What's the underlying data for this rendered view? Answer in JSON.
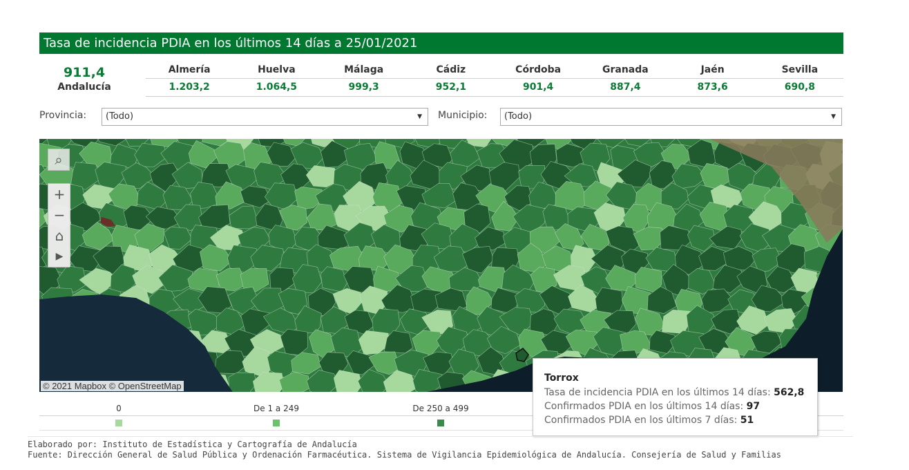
{
  "header": {
    "title": "Tasa de incidencia PDIA en los últimos 14 días a 25/01/2021"
  },
  "summary": {
    "total_value": "911,4",
    "total_label": "Andalucía",
    "provinces": [
      {
        "name": "Almería",
        "value": "1.203,2"
      },
      {
        "name": "Huelva",
        "value": "1.064,5"
      },
      {
        "name": "Málaga",
        "value": "999,3"
      },
      {
        "name": "Cádiz",
        "value": "952,1"
      },
      {
        "name": "Córdoba",
        "value": "901,4"
      },
      {
        "name": "Granada",
        "value": "887,4"
      },
      {
        "name": "Jaén",
        "value": "873,6"
      },
      {
        "name": "Sevilla",
        "value": "690,8"
      }
    ]
  },
  "filters": {
    "provincia_label": "Provincia:",
    "provincia_value": "(Todo)",
    "municipio_label": "Municipio:",
    "municipio_value": "(Todo)"
  },
  "map": {
    "attribution": "© 2021 Mapbox  © OpenStreetMap",
    "controls": [
      "search-icon",
      "zoom-in-icon",
      "zoom-out-icon",
      "home-icon",
      "play-icon"
    ],
    "colors": {
      "light": "#a7d99e",
      "mid": "#5aaa5e",
      "dark": "#2f7a3f",
      "darkest": "#1f5b2f",
      "sea": "#0d1d2a"
    }
  },
  "legend": {
    "items": [
      {
        "label": "0",
        "color": "#a7d99e"
      },
      {
        "label": "De 1 a 249",
        "color": "#6cc16d"
      },
      {
        "label": "De 250 a 499",
        "color": "#3b8c4a"
      }
    ]
  },
  "tooltip": {
    "name": "Torrox",
    "line1_label": "Tasa de incidencia PDIA en los últimos 14 días:",
    "line1_value": "562,8",
    "line2_label": "Confirmados PDIA en los últimos 14 días:",
    "line2_value": "97",
    "line3_label": "Confirmados PDIA en los últimos 7 días:",
    "line3_value": "51"
  },
  "footer": {
    "line1": "Elaborado por: Instituto de Estadística y Cartografía de Andalucía",
    "line2": "Fuente: Dirección General de Salud Pública y Ordenación Farmacéutica. Sistema de Vigilancia Epidemiológica de Andalucía. Consejería de Salud y Familias"
  }
}
